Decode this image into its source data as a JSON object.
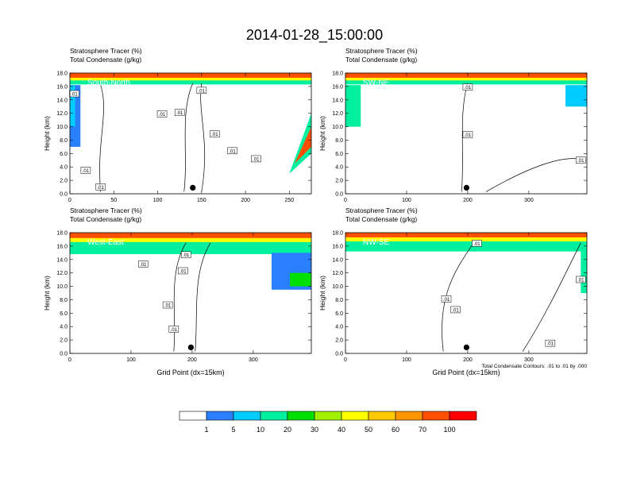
{
  "page": {
    "title": "2014-01-28_15:00:00"
  },
  "colors": {
    "levels": [
      1,
      5,
      10,
      20,
      30,
      40,
      50,
      60,
      70,
      100
    ],
    "fills": [
      "#ffffff",
      "#2a7fff",
      "#00ccff",
      "#00f0a0",
      "#00e000",
      "#a0f000",
      "#ffff00",
      "#ffc800",
      "#ff9600",
      "#ff5000",
      "#ff0000"
    ],
    "contour_line": "#000000",
    "marker": "#000000"
  },
  "legend": {
    "labels": [
      "1",
      "5",
      "10",
      "20",
      "30",
      "40",
      "50",
      "60",
      "70",
      "100"
    ]
  },
  "chart_data": [
    {
      "type": "heatmap",
      "title_lines": [
        "Stratosphere Tracer   (%)",
        "Total Condensate   (g/kg)"
      ],
      "section_label": "South-North",
      "ylabel": "Height (km)",
      "xlabel": "",
      "xlim": [
        0,
        275
      ],
      "ylim": [
        0,
        18
      ],
      "xticks": [
        0,
        50,
        100,
        150,
        200,
        250
      ],
      "yticks": [
        "0.0",
        "2.0",
        "4.0",
        "6.0",
        "8.0",
        "10.0",
        "12.0",
        "14.0",
        "16.0",
        "18.0"
      ],
      "marker_x": 140,
      "contour_labels": [
        ".01",
        ".01",
        ".01",
        ".01",
        ".01",
        ".01",
        ".01",
        ".01",
        ".01"
      ],
      "footnote": ""
    },
    {
      "type": "heatmap",
      "title_lines": [
        "Stratosphere Tracer   (%)",
        "Total Condensate   (g/kg)"
      ],
      "section_label": "SW-NE",
      "ylabel": "Height (km)",
      "xlabel": "",
      "xlim": [
        0,
        395
      ],
      "ylim": [
        0,
        18
      ],
      "xticks": [
        0,
        100,
        200,
        300
      ],
      "yticks": [
        "0.0",
        "2.0",
        "4.0",
        "6.0",
        "8.0",
        "10.0",
        "12.0",
        "14.0",
        "16.0",
        "18.0"
      ],
      "marker_x": 198,
      "contour_labels": [
        ".01",
        ".01",
        ".01"
      ],
      "footnote": ""
    },
    {
      "type": "heatmap",
      "title_lines": [
        "Stratosphere Tracer   (%)",
        "Total Condensate   (g/kg)"
      ],
      "section_label": "West-East",
      "ylabel": "Height (km)",
      "xlabel": "Grid Point (dx=15km)",
      "xlim": [
        0,
        395
      ],
      "ylim": [
        0,
        18
      ],
      "xticks": [
        0,
        100,
        200,
        300
      ],
      "yticks": [
        "0.0",
        "2.0",
        "4.0",
        "6.0",
        "8.0",
        "10.0",
        "12.0",
        "14.0",
        "16.0",
        "18.0"
      ],
      "marker_x": 198,
      "contour_labels": [
        ".01",
        ".01",
        ".01",
        ".01",
        ".01"
      ],
      "footnote": ""
    },
    {
      "type": "heatmap",
      "title_lines": [
        "Stratosphere Tracer   (%)",
        "Total Condensate   (g/kg)"
      ],
      "section_label": "NW-SE",
      "ylabel": "Height (km)",
      "xlabel": "Grid Point (dx=15km)",
      "xlim": [
        0,
        395
      ],
      "ylim": [
        0,
        18
      ],
      "xticks": [
        0,
        100,
        200,
        300
      ],
      "yticks": [
        "0.0",
        "2.0",
        "4.0",
        "6.0",
        "8.0",
        "10.0",
        "12.0",
        "14.0",
        "16.0",
        "18.0"
      ],
      "marker_x": 198,
      "contour_labels": [
        ".01",
        ".01",
        ".01",
        ".01",
        ".01"
      ],
      "footnote": "Total Condensate Contours: .01 to .01 by .000"
    }
  ]
}
